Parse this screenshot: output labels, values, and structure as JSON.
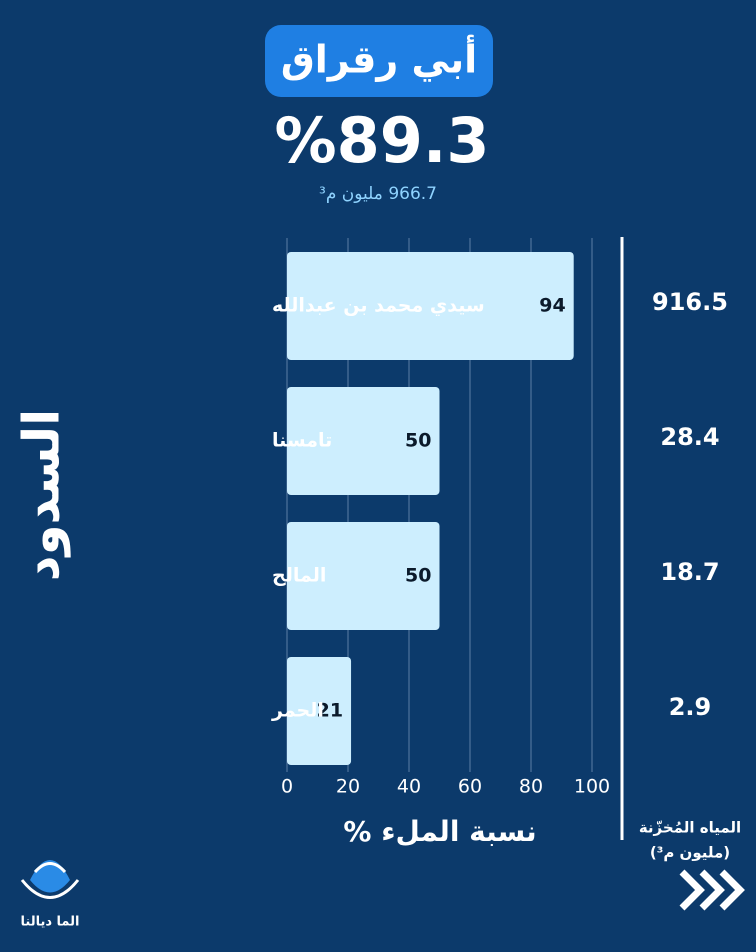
{
  "header": {
    "title": "أبي رقراق",
    "headline": "%89.3",
    "subtitle": "966.7 مليون م³"
  },
  "chart_data": {
    "type": "bar",
    "orientation": "horizontal",
    "categories": [
      "سيدي محمد بن عبدالله",
      "تامسنا",
      "المالح",
      "الحمر"
    ],
    "values": [
      94,
      50,
      50,
      21
    ],
    "color": "#cdeefe",
    "xlim": [
      0,
      100
    ],
    "xticks": [
      0,
      20,
      40,
      60,
      80,
      100
    ],
    "grid": true,
    "xlabel": "نسبة الملء %",
    "ylabel": "السدود"
  },
  "stored_water": {
    "title": "المياه المُخزّنة",
    "unit": "(مليون م³)",
    "values": [
      916.5,
      28.4,
      18.7,
      2.9
    ]
  },
  "footer": {
    "logo": "الما ديالنا"
  }
}
